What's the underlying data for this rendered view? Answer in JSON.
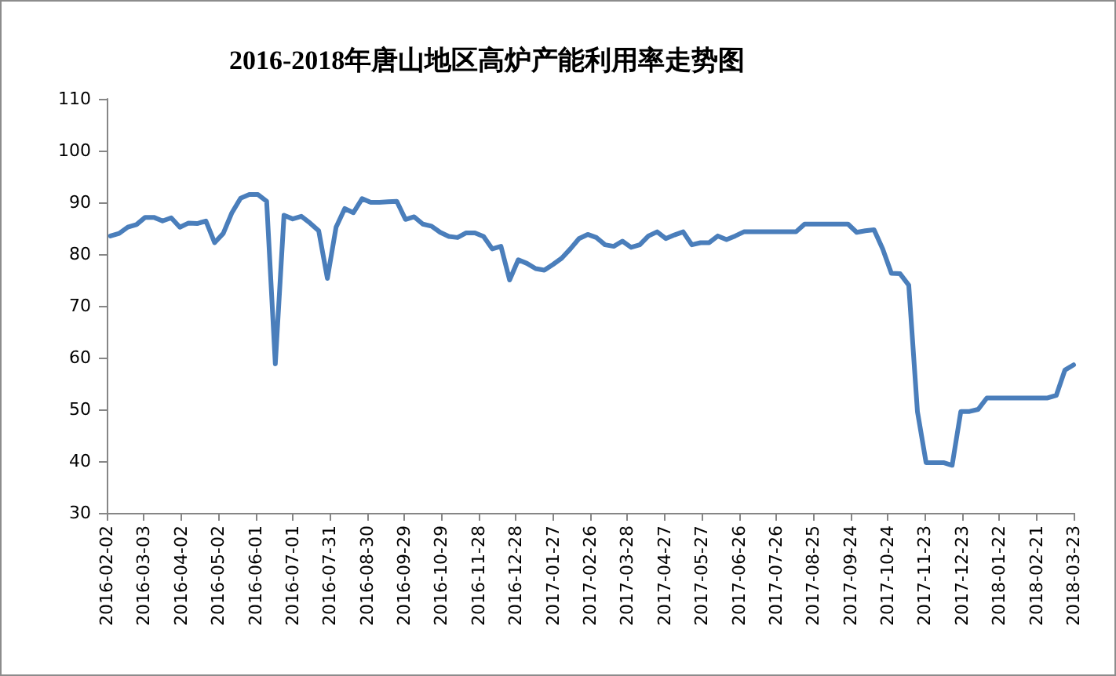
{
  "chart_data": {
    "type": "line",
    "title": "2016-2018年唐山地区高炉产能利用率走势图",
    "x": [
      "2016-02-05",
      "2016-02-12",
      "2016-02-19",
      "2016-02-26",
      "2016-03-04",
      "2016-03-11",
      "2016-03-18",
      "2016-03-25",
      "2016-04-01",
      "2016-04-08",
      "2016-04-15",
      "2016-04-22",
      "2016-04-29",
      "2016-05-06",
      "2016-05-13",
      "2016-05-20",
      "2016-05-27",
      "2016-06-03",
      "2016-06-10",
      "2016-06-17",
      "2016-06-24",
      "2016-07-01",
      "2016-07-08",
      "2016-07-15",
      "2016-07-22",
      "2016-07-29",
      "2016-08-05",
      "2016-08-12",
      "2016-08-19",
      "2016-08-26",
      "2016-09-02",
      "2016-09-09",
      "2016-09-16",
      "2016-09-23",
      "2016-09-30",
      "2016-10-07",
      "2016-10-14",
      "2016-10-21",
      "2016-10-28",
      "2016-11-04",
      "2016-11-11",
      "2016-11-18",
      "2016-11-25",
      "2016-12-02",
      "2016-12-09",
      "2016-12-16",
      "2016-12-23",
      "2016-12-30",
      "2017-01-06",
      "2017-01-13",
      "2017-01-20",
      "2017-01-27",
      "2017-02-03",
      "2017-02-10",
      "2017-02-17",
      "2017-02-24",
      "2017-03-03",
      "2017-03-10",
      "2017-03-17",
      "2017-03-24",
      "2017-03-31",
      "2017-04-07",
      "2017-04-14",
      "2017-04-21",
      "2017-04-28",
      "2017-05-05",
      "2017-05-12",
      "2017-05-19",
      "2017-05-26",
      "2017-06-02",
      "2017-06-09",
      "2017-06-16",
      "2017-06-23",
      "2017-06-30",
      "2017-07-07",
      "2017-07-14",
      "2017-07-21",
      "2017-07-28",
      "2017-08-04",
      "2017-08-11",
      "2017-08-18",
      "2017-08-25",
      "2017-09-01",
      "2017-09-08",
      "2017-09-15",
      "2017-09-22",
      "2017-09-29",
      "2017-10-06",
      "2017-10-13",
      "2017-10-20",
      "2017-10-27",
      "2017-11-03",
      "2017-11-10",
      "2017-11-17",
      "2017-11-24",
      "2017-12-01",
      "2017-12-08",
      "2017-12-15",
      "2017-12-22",
      "2017-12-29",
      "2018-01-05",
      "2018-01-12",
      "2018-01-19",
      "2018-01-26",
      "2018-02-02",
      "2018-02-09",
      "2018-02-16",
      "2018-02-23",
      "2018-03-02",
      "2018-03-09",
      "2018-03-16",
      "2018-03-23"
    ],
    "values": [
      83.5,
      84.0,
      85.2,
      85.7,
      87.1,
      87.1,
      86.4,
      87.0,
      85.2,
      86.0,
      85.9,
      86.4,
      82.2,
      84.0,
      88.0,
      90.8,
      91.5,
      91.5,
      90.2,
      58.8,
      87.5,
      86.8,
      87.3,
      86.0,
      84.5,
      75.3,
      85.2,
      88.8,
      88.0,
      90.7,
      90.0,
      90.0,
      90.1,
      90.2,
      86.7,
      87.2,
      85.8,
      85.4,
      84.2,
      83.4,
      83.2,
      84.1,
      84.1,
      83.4,
      81.0,
      81.5,
      75.0,
      78.9,
      78.2,
      77.2,
      76.9,
      78.0,
      79.2,
      81.0,
      83.0,
      83.8,
      83.2,
      81.8,
      81.5,
      82.5,
      81.3,
      81.8,
      83.5,
      84.3,
      83.0,
      83.7,
      84.3,
      81.8,
      82.2,
      82.2,
      83.5,
      82.8,
      83.5,
      84.3,
      84.3,
      84.3,
      84.3,
      84.3,
      84.3,
      84.3,
      85.8,
      85.8,
      85.8,
      85.8,
      85.8,
      85.8,
      84.2,
      84.5,
      84.7,
      81.0,
      76.3,
      76.2,
      74.0,
      49.6,
      39.7,
      39.7,
      39.7,
      39.2,
      49.6,
      49.6,
      50.0,
      52.2,
      52.2,
      52.2,
      52.2,
      52.2,
      52.2,
      52.2,
      52.2,
      52.7,
      57.6,
      58.6
    ],
    "color": "#4a7ebb",
    "line_style": "solid",
    "grid": false,
    "xlim": [
      "2016-02-02",
      "2018-03-23"
    ],
    "xticks": [
      "2016-02-02",
      "2016-03-03",
      "2016-04-02",
      "2016-05-02",
      "2016-06-01",
      "2016-07-01",
      "2016-07-31",
      "2016-08-30",
      "2016-09-29",
      "2016-10-29",
      "2016-11-28",
      "2016-12-28",
      "2017-01-27",
      "2017-02-26",
      "2017-03-28",
      "2017-04-27",
      "2017-05-27",
      "2017-06-26",
      "2017-07-26",
      "2017-08-25",
      "2017-09-24",
      "2017-10-24",
      "2017-11-23",
      "2017-12-23",
      "2018-01-22",
      "2018-02-21",
      "2018-03-23"
    ],
    "ylim": [
      30,
      110
    ],
    "yticks": [
      30,
      40,
      50,
      60,
      70,
      80,
      90,
      100,
      110
    ]
  }
}
